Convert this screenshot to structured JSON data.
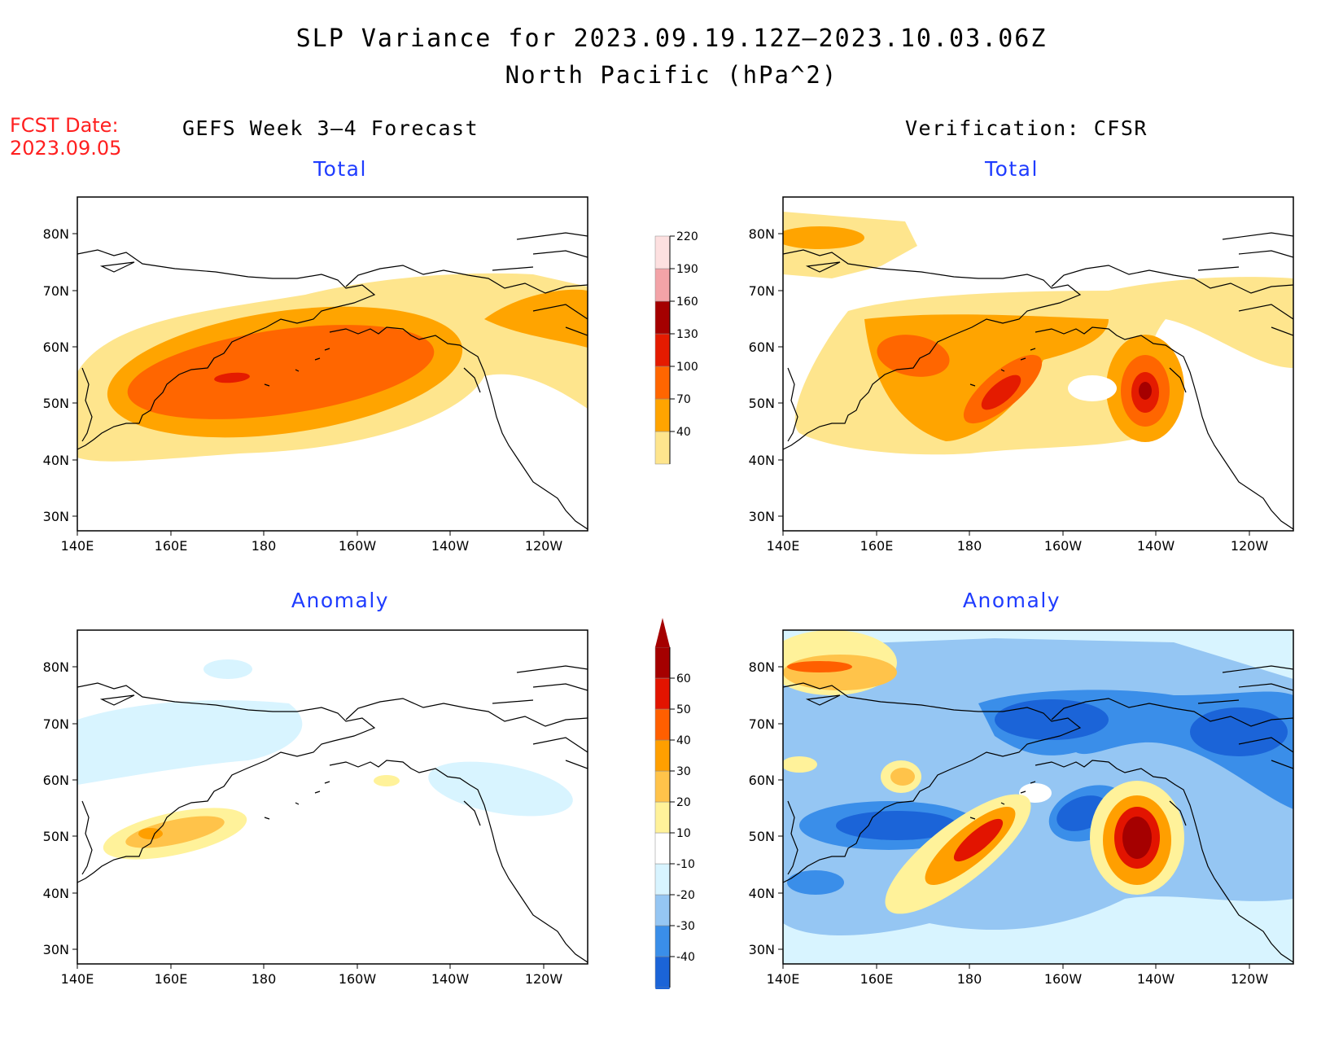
{
  "title_line1": "SLP Variance for 2023.09.19.12Z—2023.10.03.06Z",
  "title_line2": "North Pacific (hPa^2)",
  "fcst_label": "FCST Date:",
  "fcst_date": "2023.09.05",
  "left_header": "GEFS Week 3—4 Forecast",
  "right_header": "Verification: CFSR",
  "panels": {
    "tl": "Total",
    "tr": "Total",
    "bl": "Anomaly",
    "br": "Anomaly"
  },
  "axes": {
    "lat_ticks": [
      "80N",
      "70N",
      "60N",
      "50N",
      "40N",
      "30N"
    ],
    "lon_ticks": [
      "140E",
      "160E",
      "180",
      "160W",
      "140W",
      "120W"
    ]
  },
  "colorbars": {
    "total": {
      "labels": [
        "40",
        "70",
        "100",
        "130",
        "160",
        "190",
        "220"
      ],
      "colors": [
        "#fee58d",
        "#ffa400",
        "#ff6600",
        "#e41b00",
        "#a50000",
        "#f3a3a7",
        "#fde0e0"
      ]
    },
    "anomaly": {
      "labels": [
        "-40",
        "-30",
        "-20",
        "-10",
        "10",
        "20",
        "30",
        "40",
        "50",
        "60"
      ],
      "colors": [
        "#1b64d8",
        "#3a8ee9",
        "#95c6f3",
        "#d8f4ff",
        "#ffffff",
        "#fff29a",
        "#ffc34a",
        "#ff9f00",
        "#ff5f00",
        "#e21400",
        "#a50000"
      ]
    }
  }
}
